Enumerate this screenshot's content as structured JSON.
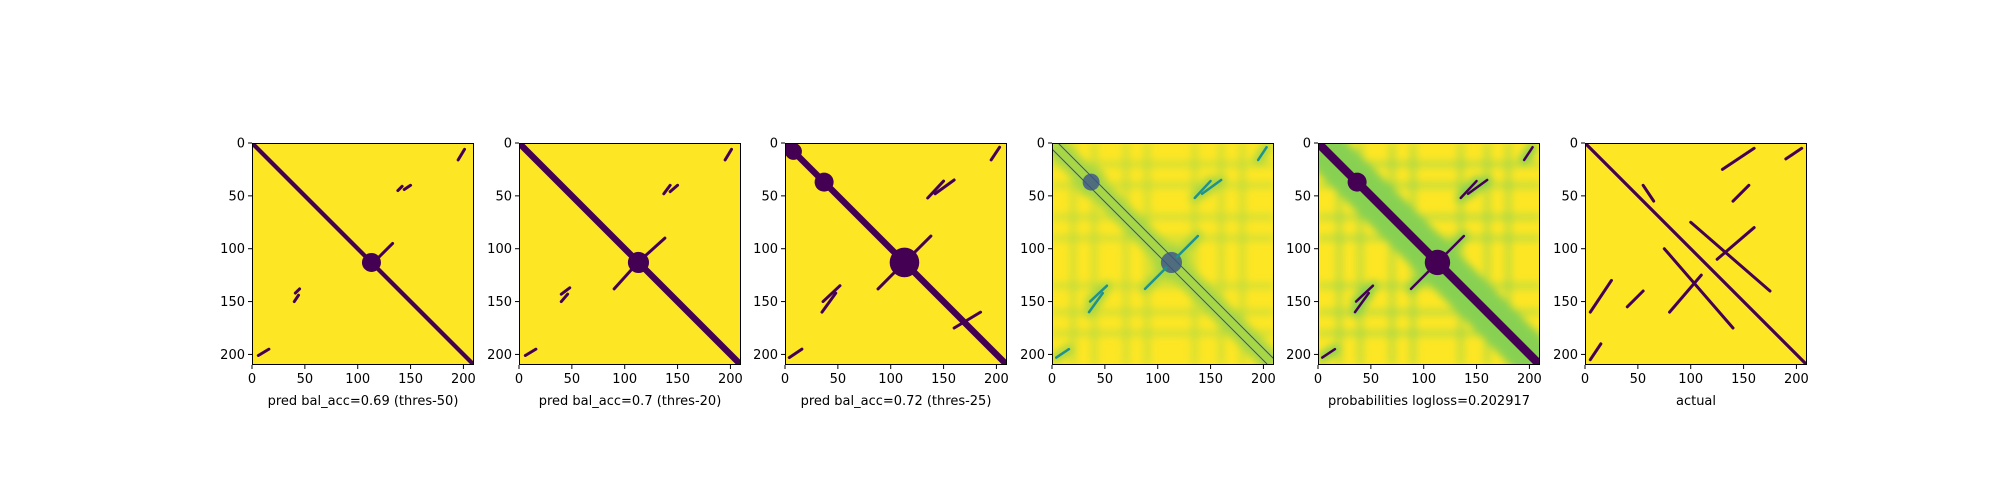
{
  "colors": {
    "background": "#fde725",
    "foreground": "#440154",
    "mid_green": "#5ec962",
    "teal": "#21918c",
    "blue": "#3b528b",
    "axis": "#000000"
  },
  "chart_data": [
    {
      "type": "heatmap",
      "xlabel": "pred bal_acc=0.69 (thres-50)",
      "xlim": [
        0,
        210
      ],
      "ylim": [
        210,
        0
      ],
      "xticks": [
        0,
        50,
        100,
        150,
        200
      ],
      "yticks": [
        0,
        50,
        100,
        150,
        200
      ],
      "colormap": "viridis",
      "binary": true,
      "diagonal_band_halfwidth": 2,
      "blobs": [
        {
          "x": 113,
          "y": 113,
          "r": 9
        }
      ],
      "contact_segments": [
        [
          [
            195,
            16
          ],
          [
            201,
            6
          ]
        ],
        [
          [
            16,
            195
          ],
          [
            6,
            201
          ]
        ],
        [
          [
            138,
            45
          ],
          [
            142,
            41
          ]
        ],
        [
          [
            45,
            138
          ],
          [
            41,
            142
          ]
        ],
        [
          [
            40,
            150
          ],
          [
            44,
            144
          ]
        ],
        [
          [
            150,
            40
          ],
          [
            144,
            44
          ]
        ],
        [
          [
            120,
            108
          ],
          [
            133,
            95
          ]
        ]
      ]
    },
    {
      "type": "heatmap",
      "xlabel": "pred bal_acc=0.7 (thres-20)",
      "xlim": [
        0,
        210
      ],
      "ylim": [
        210,
        0
      ],
      "xticks": [
        0,
        50,
        100,
        150,
        200
      ],
      "yticks": [
        0,
        50,
        100,
        150,
        200
      ],
      "colormap": "viridis",
      "binary": true,
      "diagonal_band_halfwidth": 3,
      "blobs": [
        {
          "x": 113,
          "y": 113,
          "r": 10
        }
      ],
      "contact_segments": [
        [
          [
            195,
            16
          ],
          [
            201,
            6
          ]
        ],
        [
          [
            16,
            195
          ],
          [
            6,
            201
          ]
        ],
        [
          [
            137,
            48
          ],
          [
            143,
            40
          ]
        ],
        [
          [
            48,
            137
          ],
          [
            40,
            143
          ]
        ],
        [
          [
            40,
            150
          ],
          [
            46,
            143
          ]
        ],
        [
          [
            150,
            40
          ],
          [
            143,
            46
          ]
        ],
        [
          [
            118,
            108
          ],
          [
            138,
            90
          ]
        ],
        [
          [
            108,
            118
          ],
          [
            90,
            138
          ]
        ]
      ]
    },
    {
      "type": "heatmap",
      "xlabel": "pred bal_acc=0.72 (thres-25)",
      "xlim": [
        0,
        210
      ],
      "ylim": [
        210,
        0
      ],
      "xticks": [
        0,
        50,
        100,
        150,
        200
      ],
      "yticks": [
        0,
        50,
        100,
        150,
        200
      ],
      "colormap": "viridis",
      "binary": true,
      "diagonal_band_halfwidth": 3,
      "blobs": [
        {
          "x": 113,
          "y": 113,
          "r": 14
        },
        {
          "x": 37,
          "y": 37,
          "r": 9
        },
        {
          "x": 8,
          "y": 8,
          "r": 8
        }
      ],
      "contact_segments": [
        [
          [
            195,
            16
          ],
          [
            203,
            4
          ]
        ],
        [
          [
            16,
            195
          ],
          [
            4,
            203
          ]
        ],
        [
          [
            135,
            52
          ],
          [
            150,
            36
          ]
        ],
        [
          [
            52,
            135
          ],
          [
            36,
            150
          ]
        ],
        [
          [
            35,
            160
          ],
          [
            48,
            142
          ]
        ],
        [
          [
            160,
            35
          ],
          [
            142,
            48
          ]
        ],
        [
          [
            118,
            108
          ],
          [
            138,
            88
          ]
        ],
        [
          [
            108,
            118
          ],
          [
            88,
            138
          ]
        ],
        [
          [
            160,
            175
          ],
          [
            185,
            160
          ]
        ]
      ]
    },
    {
      "type": "heatmap",
      "xlabel": "probabilities logloss=0.202917",
      "xlim": [
        0,
        210
      ],
      "ylim": [
        210,
        0
      ],
      "xticks": [
        0,
        50,
        100,
        150,
        200
      ],
      "yticks": [
        0,
        50,
        100,
        150,
        200
      ],
      "colormap": "viridis",
      "binary": false,
      "diagonal_band_halfwidth": 2,
      "blobs": [
        {
          "x": 113,
          "y": 113,
          "r": 10
        },
        {
          "x": 37,
          "y": 37,
          "r": 8
        }
      ],
      "contact_segments": [
        [
          [
            195,
            16
          ],
          [
            203,
            4
          ]
        ],
        [
          [
            16,
            195
          ],
          [
            4,
            203
          ]
        ],
        [
          [
            135,
            52
          ],
          [
            150,
            36
          ]
        ],
        [
          [
            52,
            135
          ],
          [
            36,
            150
          ]
        ],
        [
          [
            35,
            160
          ],
          [
            48,
            142
          ]
        ],
        [
          [
            160,
            35
          ],
          [
            142,
            48
          ]
        ],
        [
          [
            118,
            108
          ],
          [
            138,
            88
          ]
        ],
        [
          [
            108,
            118
          ],
          [
            88,
            138
          ]
        ]
      ]
    },
    {
      "type": "heatmap",
      "xlabel": "",
      "xlim": [
        0,
        210
      ],
      "ylim": [
        210,
        0
      ],
      "xticks": [
        0,
        50,
        100,
        150,
        200
      ],
      "yticks": [
        0,
        50,
        100,
        150,
        200
      ],
      "colormap": "viridis",
      "binary": false,
      "diagonal_band_halfwidth": 4,
      "blobs": [
        {
          "x": 113,
          "y": 113,
          "r": 12
        },
        {
          "x": 37,
          "y": 37,
          "r": 9
        }
      ],
      "contact_segments": [
        [
          [
            195,
            16
          ],
          [
            203,
            4
          ]
        ],
        [
          [
            16,
            195
          ],
          [
            4,
            203
          ]
        ],
        [
          [
            135,
            52
          ],
          [
            150,
            36
          ]
        ],
        [
          [
            52,
            135
          ],
          [
            36,
            150
          ]
        ],
        [
          [
            35,
            160
          ],
          [
            48,
            142
          ]
        ],
        [
          [
            160,
            35
          ],
          [
            142,
            48
          ]
        ],
        [
          [
            118,
            108
          ],
          [
            138,
            88
          ]
        ],
        [
          [
            108,
            118
          ],
          [
            88,
            138
          ]
        ]
      ]
    },
    {
      "type": "heatmap",
      "xlabel": "actual",
      "xlim": [
        0,
        210
      ],
      "ylim": [
        210,
        0
      ],
      "xticks": [
        0,
        50,
        100,
        150,
        200
      ],
      "yticks": [
        0,
        50,
        100,
        150,
        200
      ],
      "colormap": "viridis",
      "binary": true,
      "diagonal_band_halfwidth": 1.5,
      "blobs": [],
      "contact_segments": [
        [
          [
            130,
            25
          ],
          [
            160,
            5
          ]
        ],
        [
          [
            25,
            130
          ],
          [
            5,
            160
          ]
        ],
        [
          [
            55,
            40
          ],
          [
            65,
            55
          ]
        ],
        [
          [
            100,
            75
          ],
          [
            175,
            140
          ]
        ],
        [
          [
            75,
            100
          ],
          [
            140,
            175
          ]
        ],
        [
          [
            190,
            15
          ],
          [
            205,
            5
          ]
        ],
        [
          [
            15,
            190
          ],
          [
            5,
            205
          ]
        ],
        [
          [
            40,
            155
          ],
          [
            55,
            140
          ]
        ],
        [
          [
            155,
            40
          ],
          [
            140,
            55
          ]
        ],
        [
          [
            125,
            110
          ],
          [
            160,
            80
          ]
        ],
        [
          [
            110,
            125
          ],
          [
            80,
            160
          ]
        ]
      ]
    }
  ],
  "panel_labels": [
    "pred bal_acc=0.69 (thres-50)",
    "pred bal_acc=0.7 (thres-20)",
    "pred bal_acc=0.72 (thres-25)",
    "probabilities logloss=0.202917",
    "logloss=0.202917",
    "actual"
  ],
  "tick_labels": [
    "0",
    "50",
    "100",
    "150",
    "200"
  ]
}
